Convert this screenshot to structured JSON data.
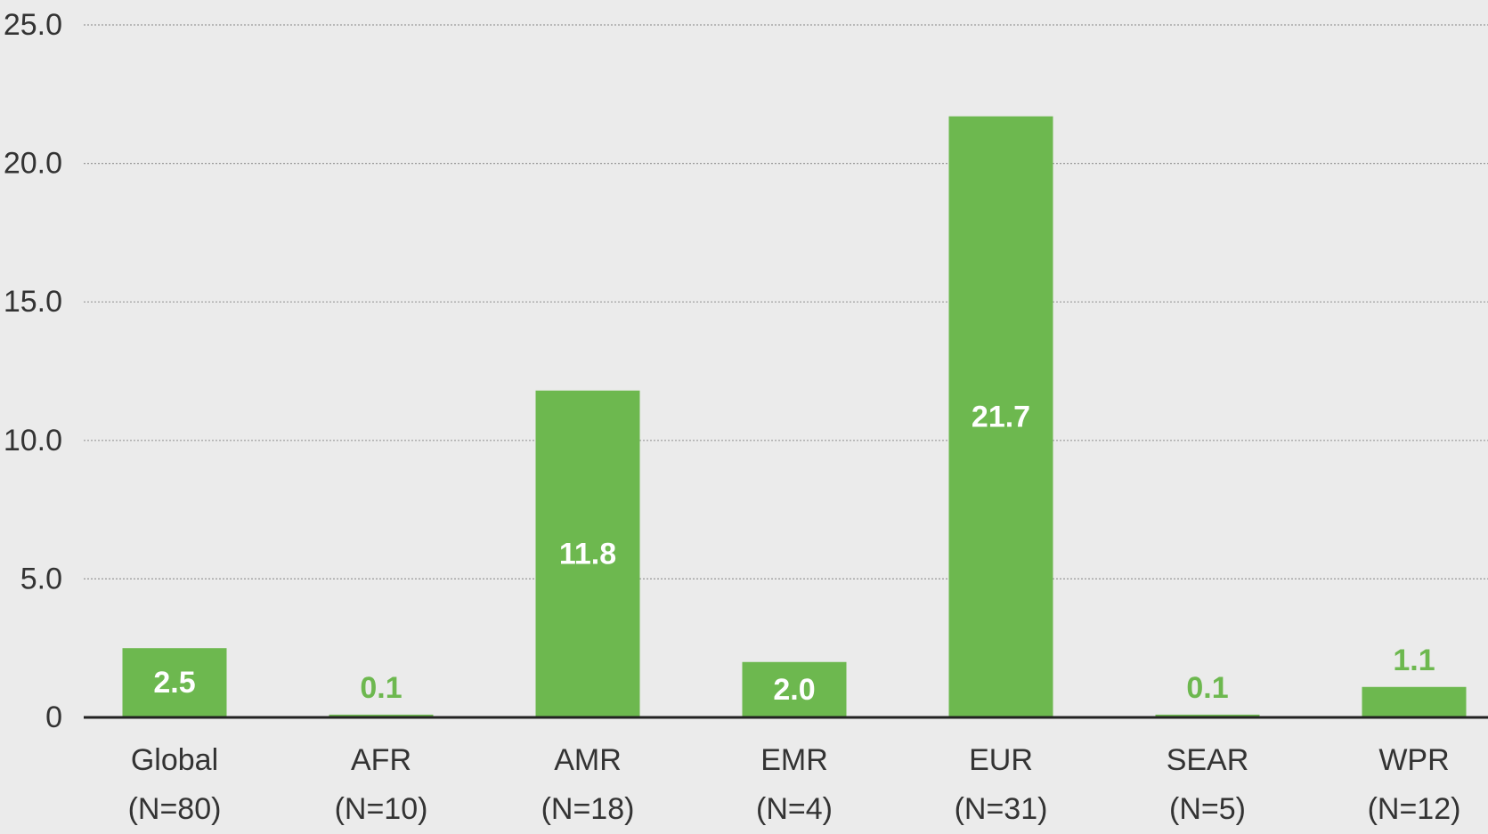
{
  "chart_data": {
    "type": "bar",
    "categories": [
      [
        "Global",
        "(N=80)"
      ],
      [
        "AFR",
        "(N=10)"
      ],
      [
        "AMR",
        "(N=18)"
      ],
      [
        "EMR",
        "(N=4)"
      ],
      [
        "EUR",
        "(N=31)"
      ],
      [
        "SEAR",
        "(N=5)"
      ],
      [
        "WPR",
        "(N=12)"
      ]
    ],
    "values": [
      2.5,
      0.1,
      11.8,
      2.0,
      21.7,
      0.1,
      1.1
    ],
    "value_labels": [
      "2.5",
      "0.1",
      "11.8",
      "2.0",
      "21.7",
      "0.1",
      "1.1"
    ],
    "color": "#6db84f",
    "ylim": [
      0,
      25
    ],
    "yticks": [
      0,
      {
        "value": 5,
        "label": "5.0"
      },
      {
        "value": 10,
        "label": "10.0"
      },
      {
        "value": 15,
        "label": "15.0"
      },
      {
        "value": 20,
        "label": "20.0"
      },
      {
        "value": 25,
        "label": "25.0"
      }
    ],
    "grid": true
  }
}
